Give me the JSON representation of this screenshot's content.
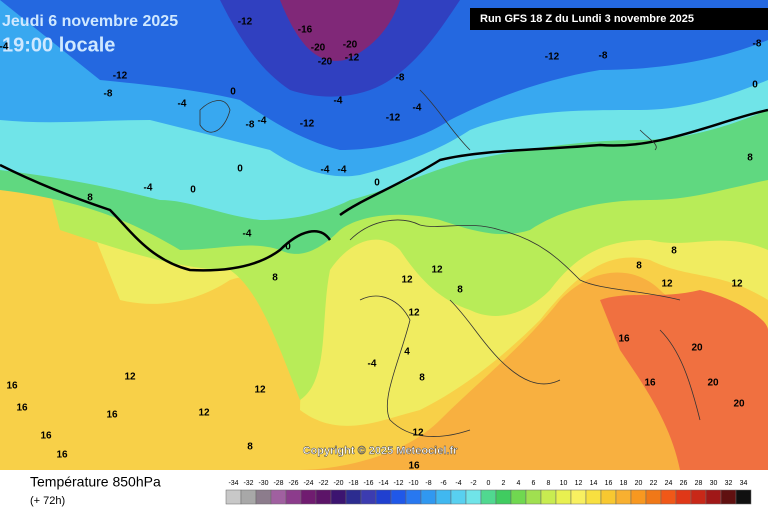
{
  "header": {
    "date": "Jeudi 6 novembre 2025",
    "time": "19:00 locale",
    "run": "Run GFS 18 Z du Lundi 3 novembre 2025"
  },
  "copyright": "Copyright © 2025 Meteociel.fr",
  "footer": {
    "title": "Température 850hPa",
    "lead": "(+ 72h)"
  },
  "scale": [
    -34,
    -32,
    -30,
    -28,
    -26,
    -24,
    -22,
    -20,
    -18,
    -16,
    -14,
    -12,
    -10,
    -8,
    -6,
    -4,
    -2,
    0,
    2,
    4,
    6,
    8,
    10,
    12,
    14,
    16,
    18,
    20,
    22,
    24,
    26,
    28,
    30,
    32,
    34
  ],
  "map": {
    "labels": [
      "-12",
      "-16",
      "-20",
      "-20",
      "-20",
      "-12",
      "-8",
      "-12",
      "-8",
      "-4",
      "-12",
      "-8",
      "-4",
      "0",
      "-8",
      "-4",
      "-12",
      "-4",
      "-4",
      "-12",
      "-4",
      "0",
      "-4",
      "-4",
      "0",
      "8",
      "0",
      "-4",
      "0",
      "8",
      "12",
      "12",
      "12",
      "8",
      "4",
      "-4",
      "8",
      "12",
      "12",
      "12",
      "8",
      "12",
      "16",
      "16",
      "16",
      "16",
      "16",
      "16",
      "16",
      "16",
      "20",
      "20",
      "20",
      "12",
      "12",
      "8",
      "8",
      "8",
      "0",
      "-8"
    ]
  }
}
